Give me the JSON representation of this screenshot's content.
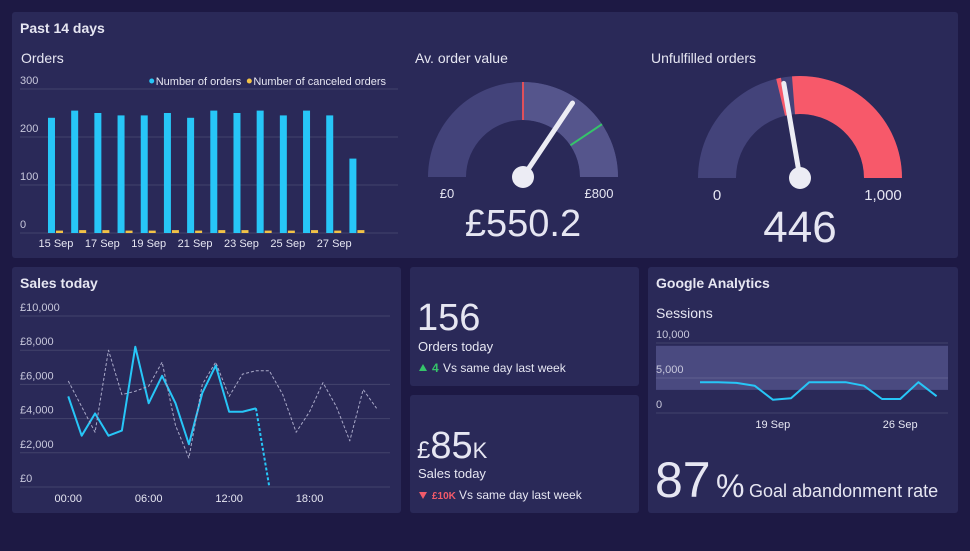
{
  "header": {
    "title": "Past 14 days"
  },
  "chart_data": [
    {
      "type": "bar",
      "title": "Orders",
      "categories": [
        "15 Sep",
        null,
        "17 Sep",
        null,
        "19 Sep",
        null,
        "21 Sep",
        null,
        "23 Sep",
        null,
        "25 Sep",
        null,
        "27 Sep",
        null
      ],
      "series": [
        {
          "name": "Number of orders",
          "color": "#27c6f7",
          "values": [
            240,
            255,
            250,
            245,
            245,
            250,
            240,
            255,
            250,
            255,
            245,
            255,
            245,
            155
          ]
        },
        {
          "name": "Number of canceled orders",
          "color": "#f2c247",
          "values": [
            5,
            6,
            6,
            5,
            5,
            6,
            5,
            6,
            6,
            5,
            5,
            6,
            5,
            6
          ]
        }
      ],
      "ylim": [
        0,
        300
      ],
      "yticks": [
        0,
        100,
        200,
        300
      ],
      "grid": true,
      "legend": "top-right"
    },
    {
      "type": "gauge",
      "title": "Av. order value",
      "values": [
        550.2
      ],
      "value_labels": [
        "£550.2"
      ],
      "ylim": [
        0,
        800
      ],
      "yticks": [
        {
          "value": 0,
          "label": "£0"
        },
        {
          "value": 800,
          "label": "£800"
        }
      ],
      "track_color": "#43437a",
      "bands": [
        {
          "from": 400,
          "to": 800,
          "color": "#55558c"
        }
      ],
      "markers": [
        {
          "value": 400,
          "color": "#e0505a"
        },
        {
          "value": 650,
          "color": "#35c46a"
        }
      ]
    },
    {
      "type": "gauge",
      "title": "Unfulfilled orders",
      "values": [
        446
      ],
      "ylim": [
        0,
        1000
      ],
      "yticks": [
        0,
        {
          "value": 1000,
          "label": "1,000"
        }
      ],
      "track_color": "#43437a",
      "bands": [
        {
          "from": 425,
          "to": 440,
          "color": "#f7596a"
        },
        {
          "from": 475,
          "to": 1000,
          "color": "#f7596a"
        }
      ],
      "markers": []
    },
    {
      "type": "line",
      "title": "Sales today",
      "x": [
        0,
        1,
        2,
        3,
        4,
        5,
        6,
        7,
        8,
        9,
        10,
        11,
        12,
        13,
        14,
        15,
        16,
        17,
        18,
        19,
        20,
        21,
        22,
        23
      ],
      "xlim": [
        -3.6,
        24
      ],
      "xticks": [
        {
          "value": 0,
          "label": "00:00"
        },
        {
          "value": 6,
          "label": "06:00"
        },
        {
          "value": 12,
          "label": "12:00"
        },
        {
          "value": 18,
          "label": "18:00"
        }
      ],
      "series": [
        {
          "color": "#27c6f7",
          "dashed": false,
          "values": [
            5300,
            3000,
            4300,
            3000,
            3300,
            8200,
            4900,
            6500,
            4900,
            2500,
            5500,
            7100,
            4400,
            4400,
            4600,
            null,
            null,
            null,
            null,
            null,
            null,
            null,
            null,
            null
          ]
        },
        {
          "color": "#27c6f7",
          "dashed": true,
          "values": [
            null,
            null,
            null,
            null,
            null,
            null,
            null,
            null,
            null,
            null,
            null,
            null,
            null,
            null,
            4600,
            0,
            null,
            null,
            null,
            null,
            null,
            null,
            null,
            null
          ]
        },
        {
          "color": "#a9a9c8",
          "dashed": true,
          "values": [
            6200,
            4700,
            3200,
            8000,
            5400,
            5600,
            5900,
            7300,
            3600,
            1700,
            6000,
            7300,
            5300,
            6600,
            6800,
            6800,
            5400,
            3200,
            4400,
            6100,
            4700,
            2700,
            5700,
            4600
          ]
        }
      ],
      "ylim": [
        0,
        10000
      ],
      "yticks": [
        {
          "value": 0,
          "label": "£0"
        },
        {
          "value": 2000,
          "label": "£2,000"
        },
        {
          "value": 4000,
          "label": "£4,000"
        },
        {
          "value": 6000,
          "label": "£6,000"
        },
        {
          "value": 8000,
          "label": "£8,000"
        },
        {
          "value": 10000,
          "label": "£10,000"
        }
      ],
      "grid": true
    },
    {
      "type": "line",
      "title": "Sessions",
      "categories": [
        null,
        null,
        null,
        null,
        "19 Sep",
        null,
        null,
        null,
        null,
        null,
        null,
        "26 Sep",
        null,
        null
      ],
      "series": [
        {
          "color": "#27c6f7",
          "dashed": false,
          "values": [
            4400,
            4400,
            4300,
            3900,
            1900,
            2100,
            4400,
            4400,
            4400,
            3900,
            2000,
            2000,
            4400,
            2400
          ]
        }
      ],
      "band": [
        3300,
        9600
      ],
      "band_color": "#4a4a80",
      "ylim": [
        0,
        10000
      ],
      "yticks": [
        0,
        {
          "value": 5000,
          "label": "5,000"
        },
        {
          "value": 10000,
          "label": "10,000"
        }
      ],
      "grid": true
    }
  ],
  "widgets": {
    "orders_today": {
      "value": 156,
      "label": "Orders today",
      "delta": 4,
      "delta_text": "Vs same day last week"
    },
    "sales_today": {
      "prefix": "£",
      "amount": 85,
      "suffix": "K",
      "label": "Sales today",
      "delta": "£10K",
      "delta_text": "Vs same day last week"
    },
    "google_analytics": {
      "title": "Google Analytics",
      "value": 87,
      "unit": "%",
      "label": "Goal abandonment rate"
    }
  }
}
